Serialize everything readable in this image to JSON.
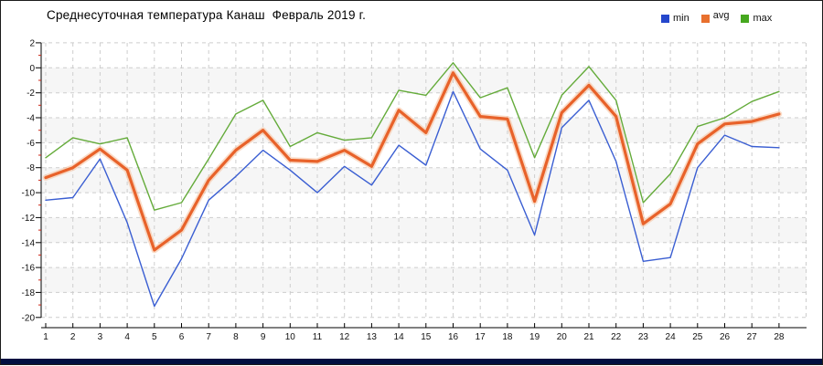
{
  "title": "Среднесуточная температура Канаш  Февраль 2019 г.",
  "legend": [
    {
      "label": "min",
      "color": "#2547cc"
    },
    {
      "label": "avg",
      "color": "#e8702e"
    },
    {
      "label": "max",
      "color": "#46a81f"
    }
  ],
  "colors": {
    "footer_bar": "#001040",
    "axis": "#000000",
    "minor_tick": "#cc2211",
    "grid": "#cdcdcd",
    "band": "#f6f6f6",
    "tick_label": "#111111"
  },
  "chart_data": {
    "type": "line",
    "title": "Среднесуточная температура Канаш  Февраль 2019 г.",
    "xlabel": "",
    "ylabel": "",
    "x": [
      1,
      2,
      3,
      4,
      5,
      6,
      7,
      8,
      9,
      10,
      11,
      12,
      13,
      14,
      15,
      16,
      17,
      18,
      19,
      20,
      21,
      22,
      23,
      24,
      25,
      26,
      27,
      28
    ],
    "ylim": [
      -20,
      2
    ],
    "ytick_step": 2,
    "grid": true,
    "legend_position": "top-right",
    "series": [
      {
        "name": "min",
        "color": "#3a5ed2",
        "width": 1.4,
        "values": [
          -10.6,
          -10.4,
          -7.3,
          -12.4,
          -19.1,
          -15.3,
          -10.6,
          -8.7,
          -6.6,
          -8.2,
          -10.0,
          -7.9,
          -9.4,
          -6.2,
          -7.8,
          -1.9,
          -6.5,
          -8.2,
          -13.4,
          -4.8,
          -2.6,
          -7.5,
          -15.5,
          -15.2,
          -8.0,
          -5.4,
          -6.3,
          -6.4
        ]
      },
      {
        "name": "avg",
        "color": "#e8622a",
        "halo": "#f6c09a",
        "width": 3.2,
        "values": [
          -8.8,
          -8.0,
          -6.5,
          -8.2,
          -14.6,
          -13.0,
          -9.0,
          -6.6,
          -5.0,
          -7.4,
          -7.5,
          -6.6,
          -7.9,
          -3.4,
          -5.2,
          -0.4,
          -3.9,
          -4.1,
          -10.7,
          -3.6,
          -1.4,
          -3.9,
          -12.5,
          -10.9,
          -6.1,
          -4.5,
          -4.3,
          -3.7
        ]
      },
      {
        "name": "max",
        "color": "#64ab3a",
        "width": 1.4,
        "values": [
          -7.2,
          -5.6,
          -6.1,
          -5.6,
          -11.4,
          -10.8,
          -7.3,
          -3.7,
          -2.6,
          -6.3,
          -5.2,
          -5.8,
          -5.6,
          -1.8,
          -2.2,
          0.4,
          -2.4,
          -1.6,
          -7.2,
          -2.2,
          0.1,
          -2.6,
          -10.8,
          -8.5,
          -4.7,
          -4.0,
          -2.7,
          -1.9
        ]
      }
    ]
  }
}
